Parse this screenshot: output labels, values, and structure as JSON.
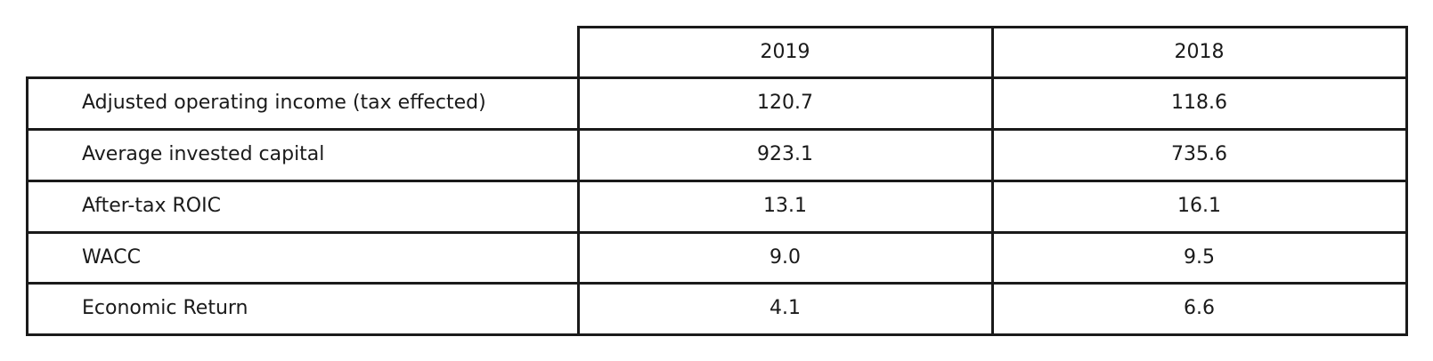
{
  "chart_data": {
    "type": "table",
    "columns": [
      "",
      "2019",
      "2018"
    ],
    "rows": [
      {
        "label": "Adjusted operating income (tax effected)",
        "values": [
          "120.7",
          "118.6"
        ]
      },
      {
        "label": "Average invested capital",
        "values": [
          "923.1",
          "735.6"
        ]
      },
      {
        "label": "After-tax ROIC",
        "values": [
          "13.1",
          "16.1"
        ]
      },
      {
        "label": "WACC",
        "values": [
          "9.0",
          "9.5"
        ]
      },
      {
        "label": "Economic Return",
        "values": [
          "4.1",
          "6.6"
        ]
      }
    ]
  },
  "colors": {
    "border": "#1a1a1a",
    "text": "#1a1a1a",
    "background": "#ffffff"
  }
}
